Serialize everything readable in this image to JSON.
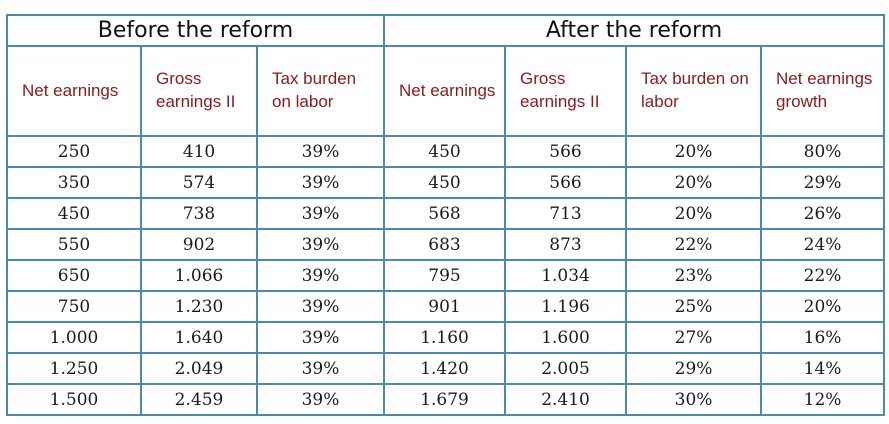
{
  "groups": {
    "before": "Before the reform",
    "after": "After the reform"
  },
  "headers": [
    "Net earnings",
    "Gross earnings II",
    "Tax burden on labor",
    "Net earnings",
    "Gross earnings II",
    "Tax burden on labor",
    "Net earnings growth"
  ],
  "rows": [
    [
      "250",
      "410",
      "39%",
      "450",
      "566",
      "20%",
      "80%"
    ],
    [
      "350",
      "574",
      "39%",
      "450",
      "566",
      "20%",
      "29%"
    ],
    [
      "450",
      "738",
      "39%",
      "568",
      "713",
      "20%",
      "26%"
    ],
    [
      "550",
      "902",
      "39%",
      "683",
      "873",
      "22%",
      "24%"
    ],
    [
      "650",
      "1.066",
      "39%",
      "795",
      "1.034",
      "23%",
      "22%"
    ],
    [
      "750",
      "1.230",
      "39%",
      "901",
      "1.196",
      "25%",
      "20%"
    ],
    [
      "1.000",
      "1.640",
      "39%",
      "1.160",
      "1.600",
      "27%",
      "16%"
    ],
    [
      "1.250",
      "2.049",
      "39%",
      "1.420",
      "2.005",
      "29%",
      "14%"
    ],
    [
      "1.500",
      "2.459",
      "39%",
      "1.679",
      "2.410",
      "30%",
      "12%"
    ]
  ],
  "colors": {
    "border": "#4a8ab2",
    "header_text": "#8b1a1a",
    "body_text": "#1a1a1a"
  }
}
